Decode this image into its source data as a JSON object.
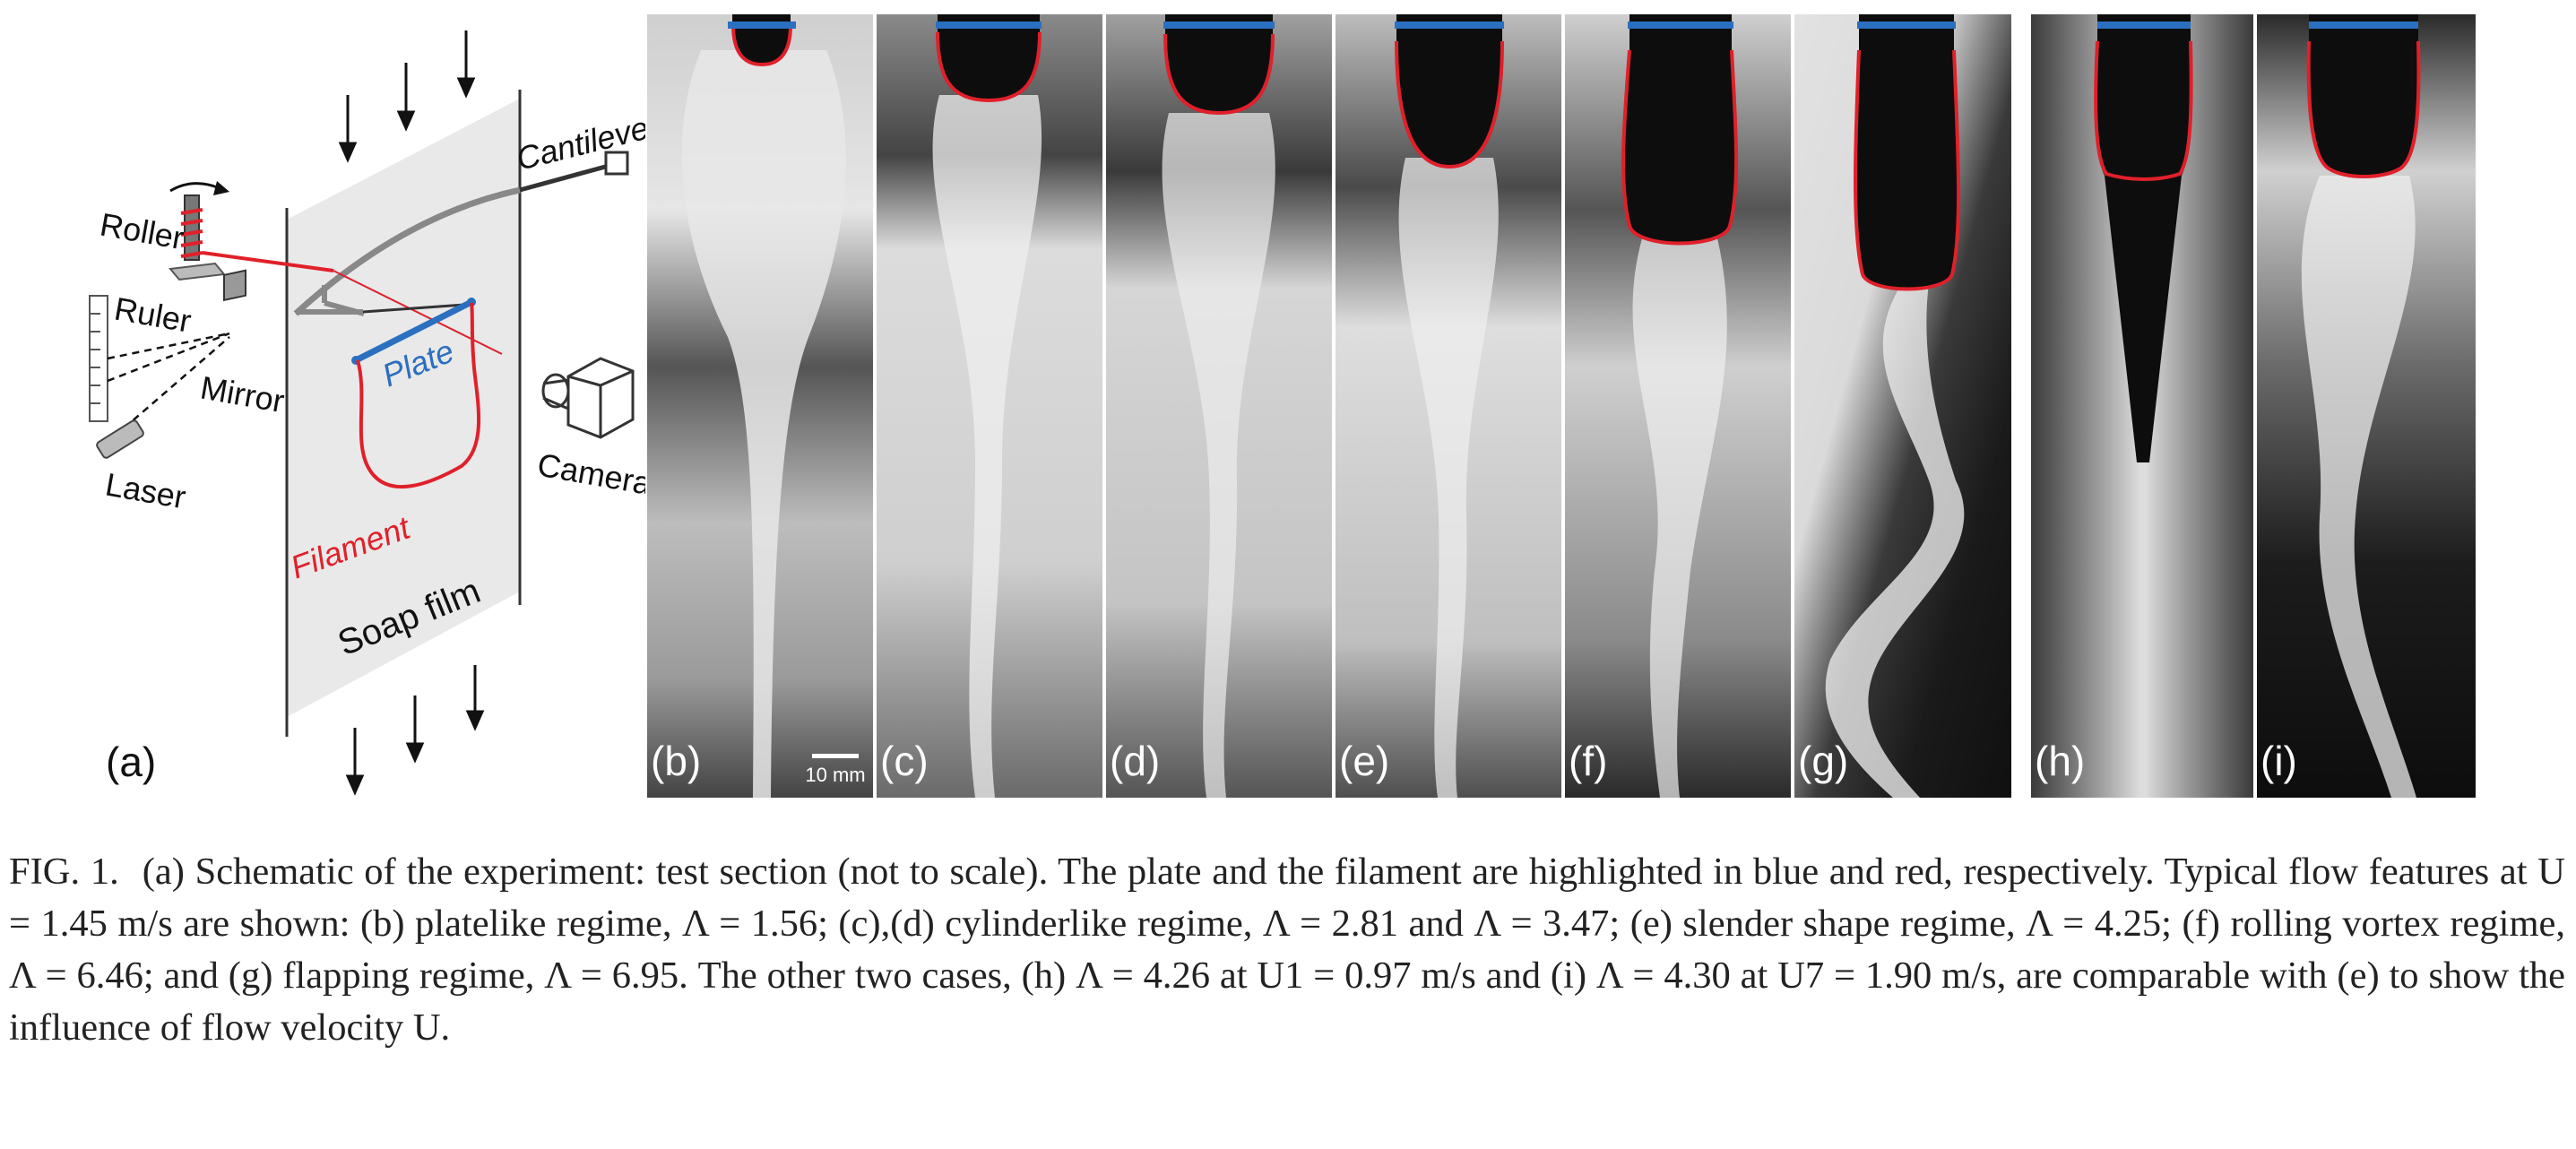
{
  "schematic": {
    "panel_label": "(a)",
    "labels": {
      "cantilever": "Cantilever",
      "roller": "Roller",
      "ruler": "Ruler",
      "mirror": "Mirror",
      "laser": "Laser",
      "plate": "Plate",
      "camera": "Camera",
      "filament": "Filament",
      "soap_film": "Soap film"
    }
  },
  "panels": [
    {
      "label": "(b)",
      "scale_bar": "10 mm"
    },
    {
      "label": "(c)"
    },
    {
      "label": "(d)"
    },
    {
      "label": "(e)"
    },
    {
      "label": "(f)"
    },
    {
      "label": "(g)"
    },
    {
      "label": "(h)"
    },
    {
      "label": "(i)"
    }
  ],
  "caption": {
    "label": "FIG. 1.",
    "text": "(a) Schematic of the experiment: test section (not to scale). The plate and the filament are highlighted in blue and red, respectively. Typical flow features at U = 1.45 m/s are shown: (b) platelike regime, Λ = 1.56; (c),(d) cylinderlike regime, Λ = 2.81 and Λ = 3.47; (e) slender shape regime, Λ = 4.25; (f) rolling vortex regime, Λ = 6.46; and (g) flapping regime, Λ = 6.95. The other two cases, (h) Λ = 4.26 at U1 = 0.97 m/s and (i) Λ = 4.30 at U7 = 1.90 m/s, are comparable with (e) to show the influence of flow velocity U."
  },
  "colors": {
    "plate": "#2a6fc0",
    "filament": "#e0202a",
    "laser_line": "#e0202a"
  }
}
